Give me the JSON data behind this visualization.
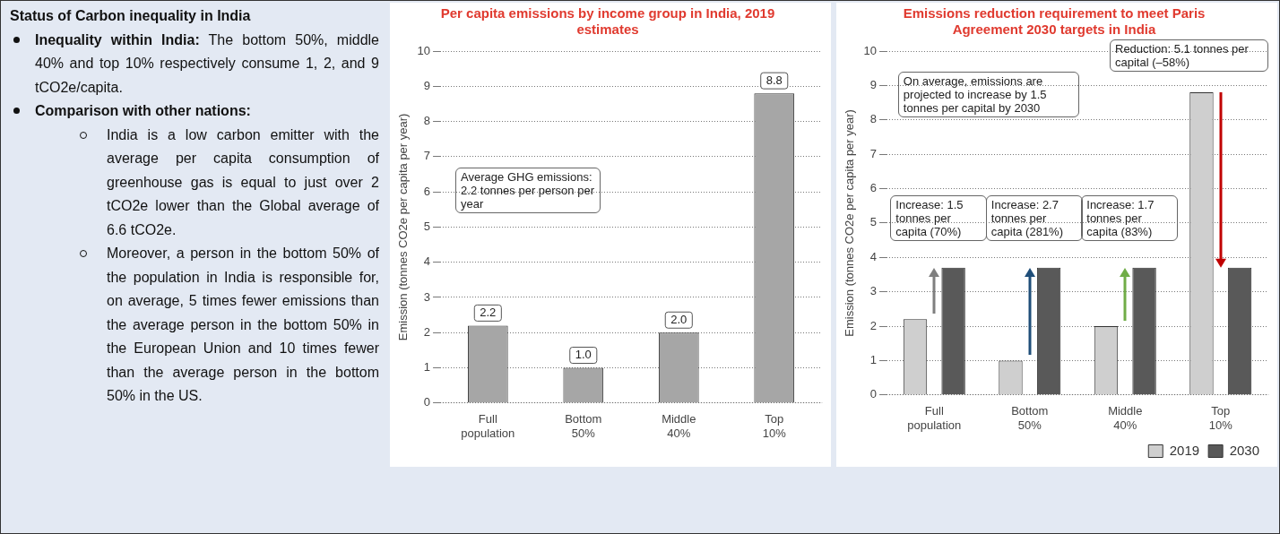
{
  "chart_data": [
    {
      "type": "other",
      "title": "Status of Carbon inequality in India",
      "annotations": [
        "Inequality within India: The bottom 50%, middle 40% and top 10% respectively consume 1, 2, and 9 tCO2e/capita.",
        "Comparison with other nations:",
        "India is a low carbon emitter with the average per capita consumption of greenhouse gas is equal to just over 2 tCO2e lower than the Global average of 6.6 tCO2e.",
        "Moreover, a person in the bottom 50% of the population in India is responsible for, on average, 5 times fewer emissions than the average person in the bottom 50% in the European Union and 10 times fewer than the average person in the bottom 50% in the US."
      ]
    },
    {
      "type": "bar",
      "title": "Per capita emissions by income group in India, 2019 estimates",
      "categories": [
        "Full population",
        "Bottom 50%",
        "Middle 40%",
        "Top 10%"
      ],
      "values": [
        2.2,
        1.0,
        2.0,
        8.8
      ],
      "color": "#a6a6a6",
      "value_labels": [
        "2.2",
        "1.0",
        "2.0",
        "8.8"
      ],
      "ylabel": "Emission (tonnes CO2e per capita per year)",
      "ylim": [
        0,
        10
      ],
      "yticks": [
        0,
        1,
        2,
        3,
        4,
        5,
        6,
        7,
        8,
        9,
        10
      ],
      "grid": "y",
      "annotations": [
        "Average GHG emissions: 2.2 tonnes per person per year"
      ]
    },
    {
      "type": "bar",
      "title": "Emissions reduction requirement to meet Paris Agreement 2030 targets in India",
      "categories": [
        "Full population",
        "Bottom 50%",
        "Middle 40%",
        "Top 10%"
      ],
      "series": [
        {
          "name": "2019",
          "color": "#cfcfcf",
          "values": [
            2.2,
            1.0,
            2.0,
            8.8
          ]
        },
        {
          "name": "2030",
          "color": "#595959",
          "values": [
            3.7,
            3.7,
            3.7,
            3.7
          ]
        }
      ],
      "ylabel": "Emission (tonnes CO2e per capita per year)",
      "ylim": [
        0,
        10
      ],
      "yticks": [
        0,
        1,
        2,
        3,
        4,
        5,
        6,
        7,
        8,
        9,
        10
      ],
      "grid": "y",
      "legend": "bottom right",
      "annotations": [
        "Reduction: 5.1 tonnes per capital (–58%)",
        "On average, emissions are projected to increase by 1.5 tonnes per capital by 2030",
        "Increase: 1.5 tonnes per capita (70%)",
        "Increase: 2.7 tonnes per capita (281%)",
        "Increase: 1.7 tonnes per capita (83%)"
      ]
    }
  ]
}
